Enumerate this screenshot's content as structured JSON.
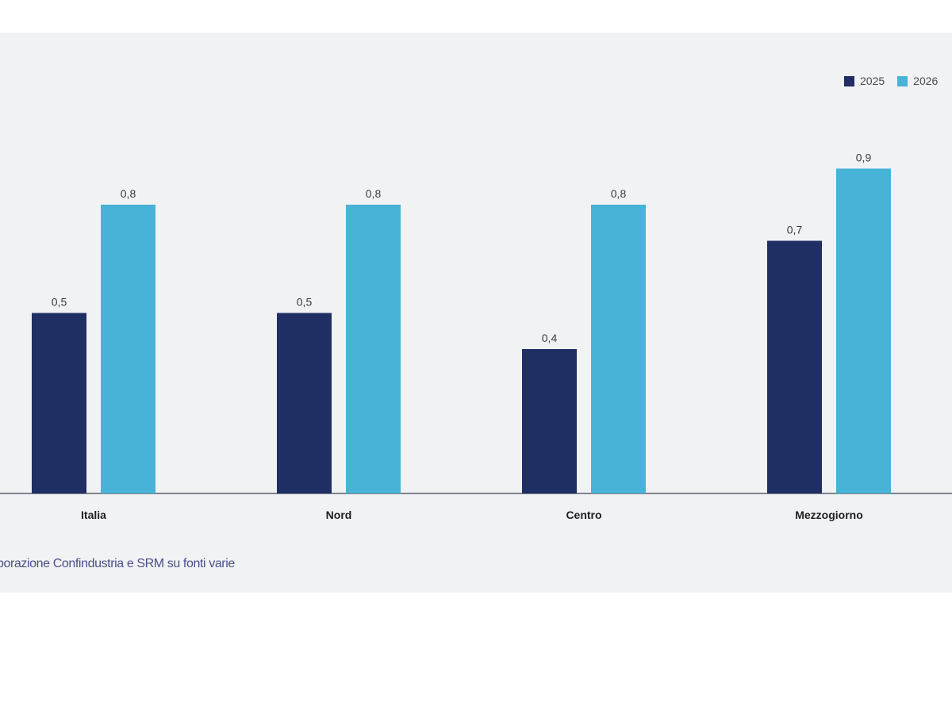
{
  "chart_data": {
    "type": "bar",
    "categories": [
      "Italia",
      "Nord",
      "Centro",
      "Mezzogiorno"
    ],
    "series": [
      {
        "name": "2025",
        "values": [
          0.5,
          0.5,
          0.4,
          0.7
        ],
        "labels": [
          "0,5",
          "0,5",
          "0,4",
          "0,7"
        ],
        "color": "#1f2f63"
      },
      {
        "name": "2026",
        "values": [
          0.8,
          0.8,
          0.8,
          0.9
        ],
        "labels": [
          "0,8",
          "0,8",
          "0,8",
          "0,9"
        ],
        "color": "#47b3d6"
      }
    ],
    "ylim": [
      0,
      1
    ],
    "grid": false,
    "legend_position": "top-right",
    "source": "borazione Confindustria e SRM su fonti varie"
  }
}
